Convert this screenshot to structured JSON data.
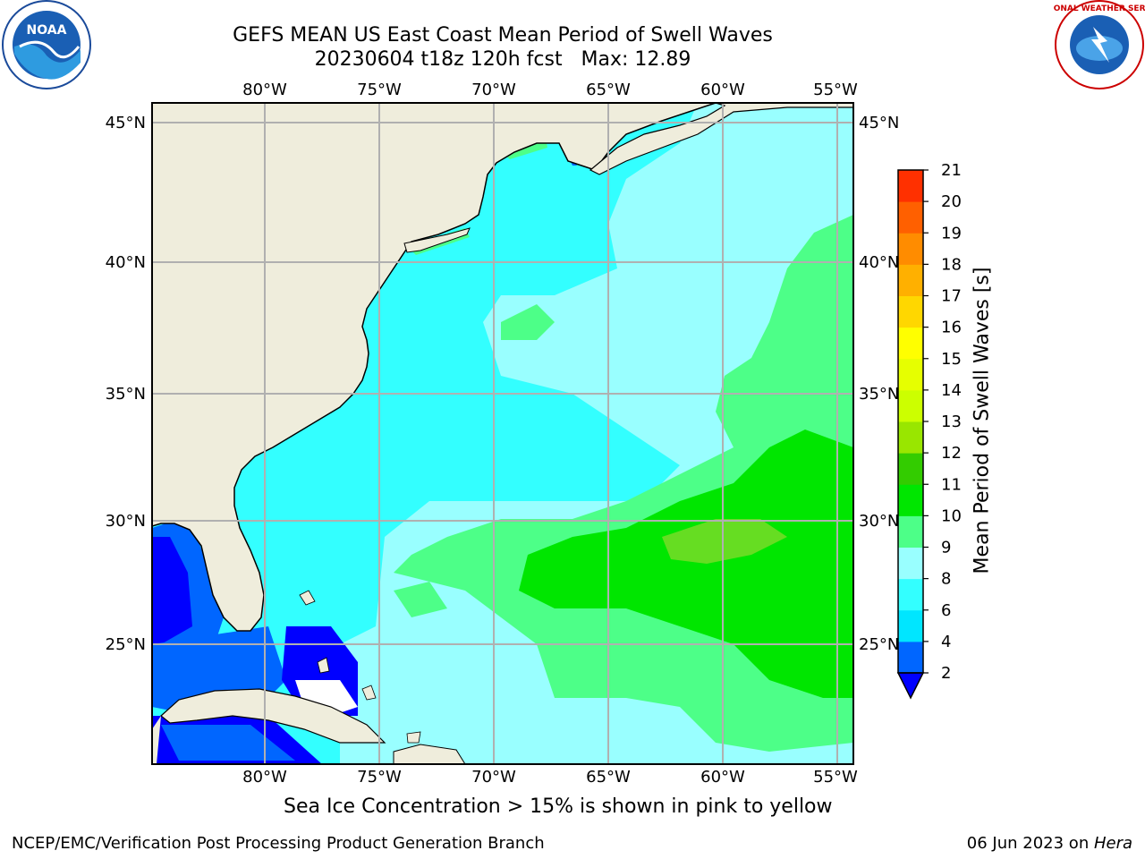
{
  "header": {
    "title_line1": "GEFS MEAN US East Coast Mean Period of Swell Waves",
    "title_line2": "20230604 t18z 120h fcst   Max: 12.89"
  },
  "logos": {
    "left": "noaa-logo",
    "right": "nws-logo",
    "left_text": "NOAA",
    "right_text": "NATIONAL WEATHER SERVICE"
  },
  "map": {
    "lon_labels": [
      "80°W",
      "75°W",
      "70°W",
      "65°W",
      "60°W",
      "55°W"
    ],
    "lat_labels": [
      "45°N",
      "40°N",
      "35°N",
      "30°N",
      "25°N"
    ],
    "colors": {
      "land": "#efeddc",
      "grid": "#b0b0b0",
      "outline": "#000000"
    }
  },
  "colorbar": {
    "label": "Mean Period of Swell Waves [s]",
    "ticks": [
      "2",
      "4",
      "6",
      "8",
      "9",
      "10",
      "11",
      "12",
      "13",
      "14",
      "15",
      "16",
      "17",
      "18",
      "19",
      "20",
      "21"
    ],
    "colors": [
      "#0066ff",
      "#00e6ff",
      "#33ffff",
      "#99ffff",
      "#4dff88",
      "#00e600",
      "#33cc00",
      "#99e600",
      "#ccff00",
      "#e6ff00",
      "#ffff00",
      "#ffd700",
      "#ffb000",
      "#ff8c00",
      "#ff6000",
      "#ff3000",
      "#ff0000"
    ],
    "under_color": "#0000ff"
  },
  "chart_data": {
    "type": "heatmap",
    "title": "GEFS MEAN US East Coast Mean Period of Swell Waves",
    "subtitle": "20230604 t18z 120h fcst   Max: 12.89",
    "variable": "Mean Period of Swell Waves [s]",
    "max_value": 12.89,
    "lon_range": [
      -85,
      -54
    ],
    "lat_range": [
      20.5,
      46
    ],
    "levels": [
      2,
      4,
      6,
      8,
      9,
      10,
      11,
      12,
      13,
      14,
      15,
      16,
      17,
      18,
      19,
      20,
      21
    ]
  },
  "footer": {
    "note": "Sea Ice Concentration > 15% is shown in pink to yellow",
    "left": "NCEP/EMC/Verification Post Processing Product Generation Branch",
    "right_date": "06 Jun 2023 on ",
    "right_host": "Hera"
  }
}
